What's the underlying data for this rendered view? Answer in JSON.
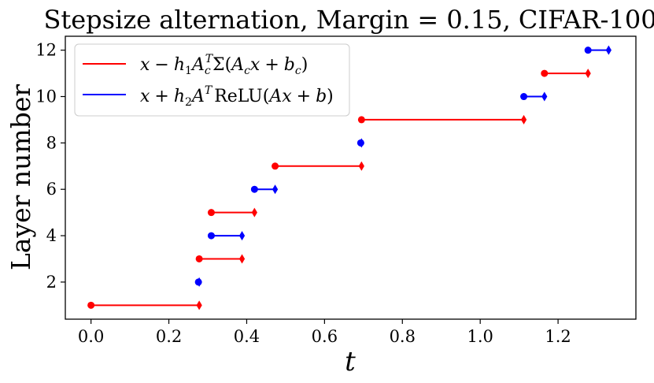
{
  "chart_data": {
    "type": "line",
    "title": "Stepsize alternation, Margin = 0.15, CIFAR-100",
    "xlabel": "t",
    "ylabel": "Layer number",
    "xlim": [
      -0.066,
      1.4
    ],
    "ylim": [
      0.4,
      12.6
    ],
    "xticks": [
      0.0,
      0.2,
      0.4,
      0.6,
      0.8,
      1.0,
      1.2
    ],
    "xtick_labels": [
      "0.0",
      "0.2",
      "0.4",
      "0.6",
      "0.8",
      "1.0",
      "1.2"
    ],
    "yticks": [
      2,
      4,
      6,
      8,
      10,
      12
    ],
    "ytick_labels": [
      "2",
      "4",
      "6",
      "8",
      "10",
      "12"
    ],
    "grid": false,
    "legend_position": "top-left",
    "series": [
      {
        "name": "x − h₁A꜀ᵀΣ(A꜀x + b꜀)",
        "color": "#ff0000",
        "segments": [
          {
            "layer": 1,
            "t_start": 0.0,
            "t_end": 0.278
          },
          {
            "layer": 3,
            "t_start": 0.278,
            "t_end": 0.388
          },
          {
            "layer": 5,
            "t_start": 0.309,
            "t_end": 0.42
          },
          {
            "layer": 7,
            "t_start": 0.473,
            "t_end": 0.695
          },
          {
            "layer": 9,
            "t_start": 0.695,
            "t_end": 1.112
          },
          {
            "layer": 11,
            "t_start": 1.165,
            "t_end": 1.277
          }
        ]
      },
      {
        "name": "x + h₂Aᵀ ReLU(Ax + b)",
        "color": "#0000ff",
        "segments": [
          {
            "layer": 2,
            "t_start": 0.276,
            "t_end": 0.278
          },
          {
            "layer": 4,
            "t_start": 0.309,
            "t_end": 0.388
          },
          {
            "layer": 6,
            "t_start": 0.42,
            "t_end": 0.473
          },
          {
            "layer": 8,
            "t_start": 0.693,
            "t_end": 0.695
          },
          {
            "layer": 10,
            "t_start": 1.112,
            "t_end": 1.165
          },
          {
            "layer": 12,
            "t_start": 1.277,
            "t_end": 1.33
          }
        ]
      }
    ]
  },
  "legend": {
    "entry1": {
      "lhs": "x",
      "op": "−",
      "h": "h",
      "h_sub": "1",
      "A": "A",
      "A_sub": "c",
      "A_sup": "T",
      "sigma": "Σ",
      "open": "(",
      "A2": "A",
      "A2_sub": "c",
      "x2": "x",
      "plus": "+",
      "b": "b",
      "b_sub": "c",
      "close": ")"
    },
    "entry2": {
      "lhs": "x",
      "op": "+",
      "h": "h",
      "h_sub": "2",
      "A": "A",
      "A_sup": "T",
      "func": "ReLU",
      "open": "(",
      "A2": "A",
      "x2": "x",
      "plus": "+",
      "b": "b",
      "close": ")"
    }
  }
}
